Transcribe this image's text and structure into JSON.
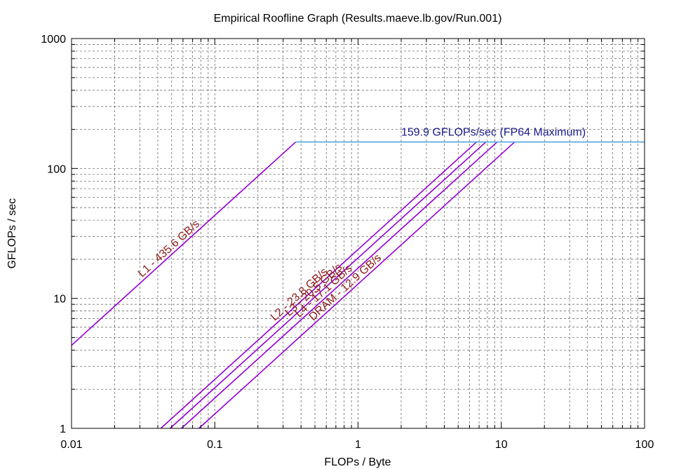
{
  "chart_data": {
    "type": "line",
    "title": "Empirical Roofline Graph (Results.maeve.lb.gov/Run.001)",
    "xlabel": "FLOPs / Byte",
    "ylabel": "GFLOPs / sec",
    "xscale": "log",
    "yscale": "log",
    "xlim": [
      0.01,
      100
    ],
    "ylim": [
      1,
      1000
    ],
    "x_ticks": [
      {
        "value": 0.01,
        "label": "0.01"
      },
      {
        "value": 0.1,
        "label": "0.1"
      },
      {
        "value": 1,
        "label": "1"
      },
      {
        "value": 10,
        "label": "10"
      },
      {
        "value": 100,
        "label": "100"
      }
    ],
    "y_ticks": [
      {
        "value": 1,
        "label": "1"
      },
      {
        "value": 10,
        "label": "10"
      },
      {
        "value": 100,
        "label": "100"
      },
      {
        "value": 1000,
        "label": "1000"
      }
    ],
    "grid": true,
    "peak": {
      "label": "159.9 GFLOPs/sec (FP64 Maximum)",
      "gflops": 159.9,
      "color": "#4fa6e0"
    },
    "bandwidth_color": "#9400d3",
    "label_color": "#8b1a1a",
    "peak_label_color": "#1a1a8b",
    "series": [
      {
        "name": "L1 - 435.6 GB/s",
        "bandwidth": 435.6,
        "label_at_x": 0.032
      },
      {
        "name": "L2 - 23.8 GB/s",
        "bandwidth": 23.8,
        "label_at_x": 0.27
      },
      {
        "name": "L3 - 20.5 GB/s",
        "bandwidth": 20.5,
        "label_at_x": 0.34
      },
      {
        "name": "L4 - 17.1 GB/s",
        "bandwidth": 17.1,
        "label_at_x": 0.4
      },
      {
        "name": "DRAM - 12.9 GB/s",
        "bandwidth": 12.9,
        "label_at_x": 0.5
      }
    ]
  }
}
